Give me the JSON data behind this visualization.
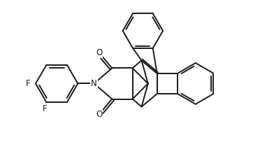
{
  "bg_color": "#ffffff",
  "line_color": "#1a1a1a",
  "line_width": 1.4,
  "figsize": [
    3.72,
    2.33
  ],
  "dpi": 100,
  "font_size_atom": 8.5,
  "xlim": [
    0,
    10
  ],
  "ylim": [
    0,
    6.26
  ]
}
